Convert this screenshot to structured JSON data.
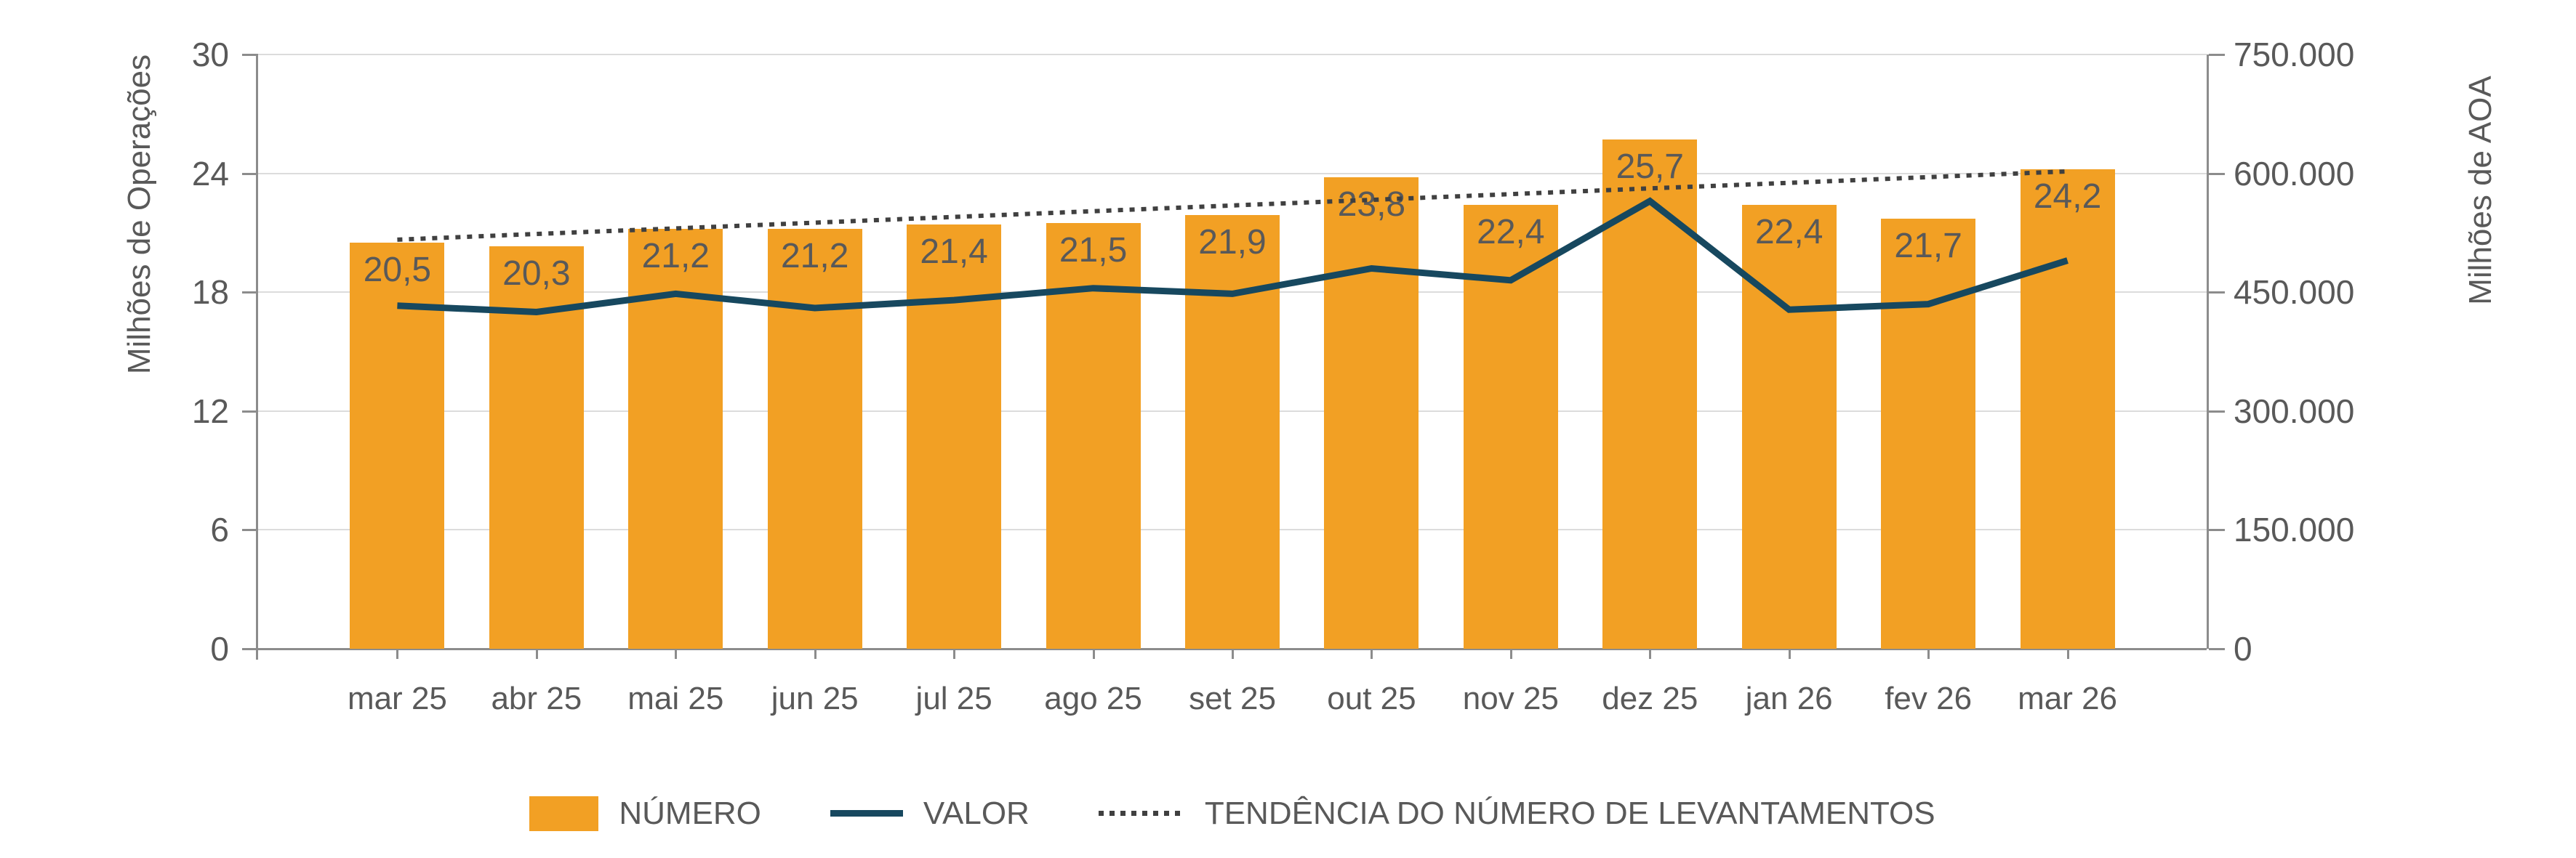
{
  "figure": {
    "background": "#ffffff"
  },
  "left_axis": {
    "title": "Milhões de Operações",
    "max": 30,
    "tick_values": [
      0,
      6,
      12,
      18,
      24,
      30
    ],
    "tick_labels": [
      "0",
      "6",
      "12",
      "18",
      "24",
      "30"
    ]
  },
  "right_axis": {
    "title": "Milhões de AOA",
    "max": 750000,
    "tick_values": [
      0,
      150000,
      300000,
      450000,
      600000,
      750000
    ],
    "tick_labels": [
      "0",
      "150.000",
      "300.000",
      "450.000",
      "600.000",
      "750.000"
    ]
  },
  "legend": {
    "position": "bottom-center",
    "items": [
      {
        "label": "NÚMERO",
        "marker": "bar-swatch",
        "color": "#f2a024"
      },
      {
        "label": "VALOR",
        "marker": "solid-line",
        "color": "#17485f"
      },
      {
        "label": "TENDÊNCIA DO NÚMERO DE LEVANTAMENTOS",
        "marker": "dotted-line",
        "color": "#404040"
      }
    ]
  },
  "colors": {
    "bar": "#f2a024",
    "value_line": "#17485f",
    "trend_line": "#404040",
    "text": "#595959",
    "axis": "#8c8c8c",
    "grid": "#dcdcdc",
    "background": "#ffffff"
  },
  "chart_data": {
    "type": "bar",
    "subtype": "bar+line combo, dual axis",
    "grid": true,
    "legend_position": "bottom",
    "categories": [
      "mar 25",
      "abr 25",
      "mai 25",
      "jun 25",
      "jul 25",
      "ago 25",
      "set 25",
      "out 25",
      "nov 25",
      "dez 25",
      "jan 26",
      "fev 26",
      "mar 26"
    ],
    "xlabel": "",
    "ylabel_left": "Milhões de Operações",
    "ylabel_right": "Milhões de AOA",
    "ylim_left": [
      0,
      30
    ],
    "ylim_right": [
      0,
      750000
    ],
    "series": [
      {
        "name": "NÚMERO",
        "type": "bar",
        "axis": "left",
        "values": [
          20.5,
          20.3,
          21.2,
          21.2,
          21.4,
          21.5,
          21.9,
          23.8,
          22.4,
          25.7,
          22.4,
          21.7,
          24.2
        ],
        "data_labels": [
          "20,5",
          "20,3",
          "21,2",
          "21,2",
          "21,4",
          "21,5",
          "21,9",
          "23,8",
          "22,4",
          "25,7",
          "22,4",
          "21,7",
          "24,2"
        ]
      },
      {
        "name": "VALOR",
        "type": "line",
        "axis": "right",
        "values": [
          433000,
          425000,
          448000,
          430000,
          440000,
          455000,
          448000,
          480000,
          465000,
          565000,
          428000,
          435000,
          490000
        ]
      },
      {
        "name": "TENDÊNCIA DO NÚMERO DE LEVANTAMENTOS",
        "type": "dotted-line",
        "axis": "left",
        "values": [
          20.65,
          20.94,
          21.22,
          21.51,
          21.8,
          22.09,
          22.38,
          22.66,
          22.95,
          23.24,
          23.52,
          23.81,
          24.1
        ]
      }
    ]
  }
}
